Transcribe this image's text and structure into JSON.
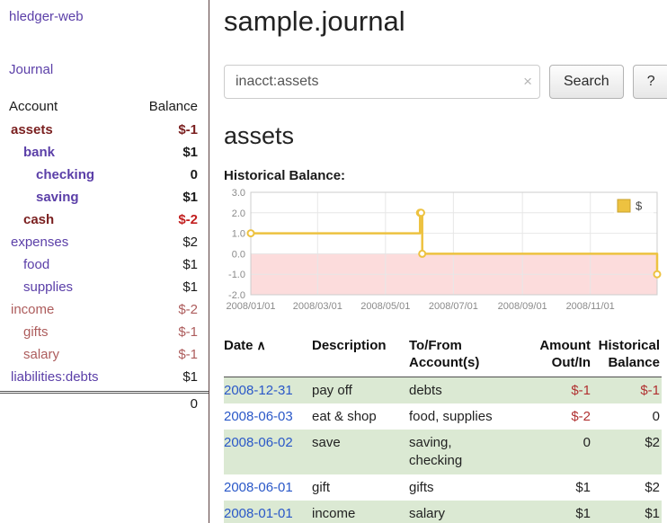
{
  "app": {
    "title": "hledger-web",
    "nav_journal": "Journal"
  },
  "sidebar": {
    "header": {
      "account": "Account",
      "balance": "Balance"
    },
    "accounts": [
      {
        "name": "assets",
        "indent": 0,
        "bold": true,
        "name_color": "maroon",
        "balance": "$-1",
        "balance_color": "maroon"
      },
      {
        "name": "bank",
        "indent": 1,
        "bold": true,
        "name_color": "purple",
        "balance": "$1",
        "balance_color": "black"
      },
      {
        "name": "checking",
        "indent": 2,
        "bold": true,
        "name_color": "purple",
        "balance": "0",
        "balance_color": "black"
      },
      {
        "name": "saving",
        "indent": 2,
        "bold": true,
        "name_color": "purple",
        "balance": "$1",
        "balance_color": "black"
      },
      {
        "name": "cash",
        "indent": 1,
        "bold": true,
        "name_color": "maroon",
        "balance": "$-2",
        "balance_color": "red"
      },
      {
        "name": "expenses",
        "indent": 0,
        "bold": false,
        "name_color": "purple",
        "balance": "$2",
        "balance_color": "black"
      },
      {
        "name": "food",
        "indent": 1,
        "bold": false,
        "name_color": "purple",
        "balance": "$1",
        "balance_color": "black"
      },
      {
        "name": "supplies",
        "indent": 1,
        "bold": false,
        "name_color": "purple",
        "balance": "$1",
        "balance_color": "black"
      },
      {
        "name": "income",
        "indent": 0,
        "bold": false,
        "name_color": "rose",
        "balance": "$-2",
        "balance_color": "rose"
      },
      {
        "name": "gifts",
        "indent": 1,
        "bold": false,
        "name_color": "rose",
        "balance": "$-1",
        "balance_color": "rose"
      },
      {
        "name": "salary",
        "indent": 1,
        "bold": false,
        "name_color": "rose",
        "balance": "$-1",
        "balance_color": "rose"
      },
      {
        "name": "liabilities:debts",
        "indent": 0,
        "bold": false,
        "name_color": "purple",
        "balance": "$1",
        "balance_color": "black"
      }
    ],
    "total": "0"
  },
  "main": {
    "title": "sample.journal",
    "search": {
      "value": "inacct:assets",
      "clear_icon": "×",
      "button_label": "Search",
      "help_label": "?"
    },
    "heading": "assets",
    "chart_label": "Historical Balance:"
  },
  "chart_data": {
    "type": "line",
    "title": "Historical Balance",
    "series": [
      {
        "name": "$",
        "color": "#edc240",
        "step": true,
        "points": [
          {
            "date": "2008-01-01",
            "day": 0,
            "value": 1
          },
          {
            "date": "2008-06-01",
            "day": 152,
            "value": 2
          },
          {
            "date": "2008-06-02",
            "day": 153,
            "value": 2
          },
          {
            "date": "2008-06-03",
            "day": 154,
            "value": 0
          },
          {
            "date": "2008-12-31",
            "day": 365,
            "value": -1
          }
        ]
      }
    ],
    "ylim": [
      -2,
      3
    ],
    "yticks": [
      3,
      2,
      1,
      0,
      -1,
      -2
    ],
    "ytick_labels": [
      "3.0",
      "2.0",
      "1.0",
      "0.0",
      "-1.0",
      "-2.0"
    ],
    "xlim_days": [
      0,
      365
    ],
    "xticks": [
      {
        "day": 0,
        "label": "2008/01/01"
      },
      {
        "day": 60,
        "label": "2008/03/01"
      },
      {
        "day": 121,
        "label": "2008/05/01"
      },
      {
        "day": 182,
        "label": "2008/07/01"
      },
      {
        "day": 244,
        "label": "2008/09/01"
      },
      {
        "day": 305,
        "label": "2008/11/01"
      }
    ],
    "grid": true,
    "negative_region_color": "#fcdcdc",
    "legend": {
      "label": "$",
      "position": "top-right"
    }
  },
  "register": {
    "headers": [
      {
        "lines": [
          "Date"
        ],
        "sort_icon": "∧",
        "align": "left"
      },
      {
        "lines": [
          "Description"
        ],
        "align": "left"
      },
      {
        "lines": [
          "To/From",
          "Account(s)"
        ],
        "align": "left"
      },
      {
        "lines": [
          "Amount",
          "Out/In"
        ],
        "align": "right"
      },
      {
        "lines": [
          "Historical",
          "Balance"
        ],
        "align": "right"
      }
    ],
    "rows": [
      {
        "date": "2008-12-31",
        "description": "pay off",
        "tofrom_lines": [
          "debts"
        ],
        "amount": "$-1",
        "amount_neg": true,
        "balance": "$-1",
        "balance_neg": true
      },
      {
        "date": "2008-06-03",
        "description": "eat & shop",
        "tofrom_lines": [
          "food, supplies"
        ],
        "amount": "$-2",
        "amount_neg": true,
        "balance": "0",
        "balance_neg": false
      },
      {
        "date": "2008-06-02",
        "description": "save",
        "tofrom_lines": [
          "saving,",
          "checking"
        ],
        "amount": "0",
        "amount_neg": false,
        "balance": "$2",
        "balance_neg": false
      },
      {
        "date": "2008-06-01",
        "description": "gift",
        "tofrom_lines": [
          "gifts"
        ],
        "amount": "$1",
        "amount_neg": false,
        "balance": "$2",
        "balance_neg": false
      },
      {
        "date": "2008-01-01",
        "description": "income",
        "tofrom_lines": [
          "salary"
        ],
        "amount": "$1",
        "amount_neg": false,
        "balance": "$1",
        "balance_neg": false
      }
    ]
  }
}
